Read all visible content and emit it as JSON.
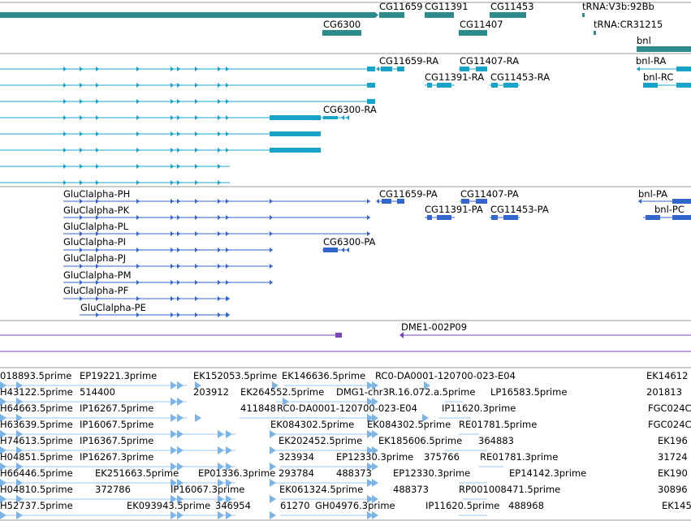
{
  "browser": {
    "colors": {
      "gene": "#2e8b8b",
      "transcript": "#1aa3c8",
      "protein": "#3366cc",
      "clone": "#7744bb",
      "est": "#7cb4e6",
      "divider": "#9a9a9a"
    }
  },
  "tracks": {
    "genes": {
      "features": [
        {
          "label": "CG11659",
          "name": "gene-CG11659"
        },
        {
          "label": "CG11391",
          "name": "gene-CG11391"
        },
        {
          "label": "CG11453",
          "name": "gene-CG11453"
        },
        {
          "label": "tRNA:V3b:92Bb",
          "name": "gene-tRNA-V3b-92Bb"
        },
        {
          "label": "CG6300",
          "name": "gene-CG6300"
        },
        {
          "label": "CG11407",
          "name": "gene-CG11407"
        },
        {
          "label": "tRNA:CR31215",
          "name": "gene-tRNA-CR31215"
        },
        {
          "label": "bnl",
          "name": "gene-bnl"
        }
      ]
    },
    "transcripts": {
      "features": [
        {
          "label": "CG11659-RA",
          "name": "transcript-CG11659-RA"
        },
        {
          "label": "CG11407-RA",
          "name": "transcript-CG11407-RA"
        },
        {
          "label": "bnl-RA",
          "name": "transcript-bnl-RA"
        },
        {
          "label": "CG11391-RA",
          "name": "transcript-CG11391-RA"
        },
        {
          "label": "CG11453-RA",
          "name": "transcript-CG11453-RA"
        },
        {
          "label": "bnl-RC",
          "name": "transcript-bnl-RC"
        },
        {
          "label": "CG6300-RA",
          "name": "transcript-CG6300-RA"
        }
      ]
    },
    "proteins": {
      "features": [
        {
          "label": "GluClalpha-PH",
          "name": "protein-GluClalpha-PH"
        },
        {
          "label": "GluClalpha-PK",
          "name": "protein-GluClalpha-PK"
        },
        {
          "label": "GluClalpha-PL",
          "name": "protein-GluClalpha-PL"
        },
        {
          "label": "GluClalpha-PI",
          "name": "protein-GluClalpha-PI"
        },
        {
          "label": "GluClalpha-PJ",
          "name": "protein-GluClalpha-PJ"
        },
        {
          "label": "GluClalpha-PM",
          "name": "protein-GluClalpha-PM"
        },
        {
          "label": "GluClalpha-PF",
          "name": "protein-GluClalpha-PF"
        },
        {
          "label": "GluClalpha-PE",
          "name": "protein-GluClalpha-PE"
        },
        {
          "label": "CG11659-PA",
          "name": "protein-CG11659-PA"
        },
        {
          "label": "CG11407-PA",
          "name": "protein-CG11407-PA"
        },
        {
          "label": "bnl-PA",
          "name": "protein-bnl-PA"
        },
        {
          "label": "CG11391-PA",
          "name": "protein-CG11391-PA"
        },
        {
          "label": "CG11453-PA",
          "name": "protein-CG11453-PA"
        },
        {
          "label": "bnl-PC",
          "name": "protein-bnl-PC"
        },
        {
          "label": "CG6300-PA",
          "name": "protein-CG6300-PA"
        }
      ]
    },
    "clones": {
      "features": [
        {
          "label": "DME1-002P09",
          "name": "clone-DME1-002P09"
        }
      ]
    },
    "ests": {
      "features": [
        {
          "label": "018893.5prime"
        },
        {
          "label": "EP19221.3prime"
        },
        {
          "label": "EK152053.5prime"
        },
        {
          "label": "EK146636.5prime"
        },
        {
          "label": "RC0-DA0001-120700-023-E04"
        },
        {
          "label": "EK14612"
        },
        {
          "label": "H43122.5prime"
        },
        {
          "label": "514400"
        },
        {
          "label": "203912"
        },
        {
          "label": "EK264552.5prime"
        },
        {
          "label": "DMG1-chr3R.16.072.a.5prime"
        },
        {
          "label": "LP16583.5prime"
        },
        {
          "label": "201813"
        },
        {
          "label": "H64663.5prime"
        },
        {
          "label": "IP16267.5prime"
        },
        {
          "label": "411848"
        },
        {
          "label": "RC0-DA0001-120700-023-E04"
        },
        {
          "label": "IP11620.3prime"
        },
        {
          "label": "FGC024C"
        },
        {
          "label": "H63639.5prime"
        },
        {
          "label": "IP16067.5prime"
        },
        {
          "label": "EK084302.5prime"
        },
        {
          "label": "EK084302.5prime"
        },
        {
          "label": "RE01781.5prime"
        },
        {
          "label": "FGC024C"
        },
        {
          "label": "H74613.5prime"
        },
        {
          "label": "IP16367.5prime"
        },
        {
          "label": "EK202452.5prime"
        },
        {
          "label": "EK185606.5prime"
        },
        {
          "label": "364883"
        },
        {
          "label": "EK196"
        },
        {
          "label": "H04851.5prime"
        },
        {
          "label": "IP16267.3prime"
        },
        {
          "label": "323934"
        },
        {
          "label": "EP12330.3prime"
        },
        {
          "label": "375766"
        },
        {
          "label": "RE01781.3prime"
        },
        {
          "label": "31724"
        },
        {
          "label": "H66446.5prime"
        },
        {
          "label": "EK251663.5prime"
        },
        {
          "label": "EP01336.3prime"
        },
        {
          "label": "293784"
        },
        {
          "label": "488373"
        },
        {
          "label": "EP12330.3prime"
        },
        {
          "label": "EP14142.3prime"
        },
        {
          "label": "EK190"
        },
        {
          "label": "H04810.5prime"
        },
        {
          "label": "372786"
        },
        {
          "label": "IP16067.3prime"
        },
        {
          "label": "EK061324.5prime"
        },
        {
          "label": "488373"
        },
        {
          "label": "RP001008471.5prime"
        },
        {
          "label": "30896"
        },
        {
          "label": "H52737.5prime"
        },
        {
          "label": "EK093943.5prime"
        },
        {
          "label": "346954"
        },
        {
          "label": "61270"
        },
        {
          "label": "GH04976.3prime"
        },
        {
          "label": "IP11620.5prime"
        },
        {
          "label": "488968"
        },
        {
          "label": "EK145"
        }
      ]
    }
  }
}
